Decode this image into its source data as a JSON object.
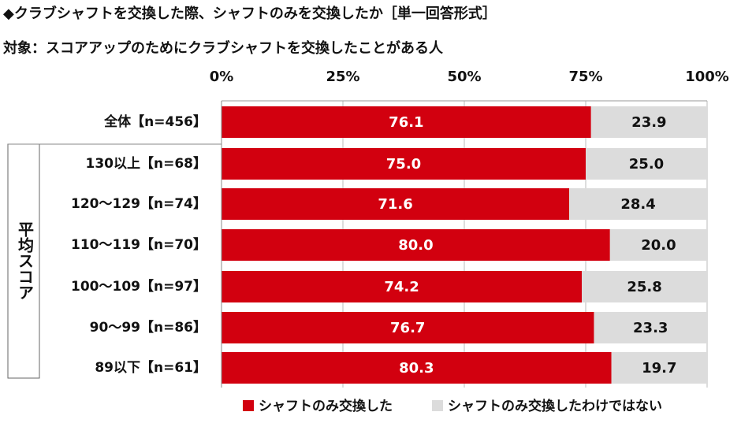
{
  "chart_data": {
    "type": "stacked-bar-horizontal",
    "title": "◆クラブシャフトを交換した際、シャフトのみを交換したか［単一回答形式］",
    "subtitle": "対象：スコアアップのためにクラブシャフトを交換したことがある人",
    "group_label": "平均スコア",
    "categories": [
      "全体【n=456】",
      "130以上【n=68】",
      "120～129【n=74】",
      "110～119【n=70】",
      "100～109【n=97】",
      "90～99【n=86】",
      "89以下【n=61】"
    ],
    "series": [
      {
        "name": "シャフトのみ交換した",
        "color": "#d2000f",
        "values": [
          76.1,
          75.0,
          71.6,
          80.0,
          74.2,
          76.7,
          80.3
        ],
        "value_labels": [
          "76.1",
          "75.0",
          "71.6",
          "80.0",
          "74.2",
          "76.7",
          "80.3"
        ]
      },
      {
        "name": "シャフトのみ交換したわけではない",
        "color": "#dcdcdc",
        "values": [
          23.9,
          25.0,
          28.4,
          20.0,
          25.8,
          23.3,
          19.7
        ],
        "value_labels": [
          "23.9",
          "25.0",
          "28.4",
          "20.0",
          "25.8",
          "23.3",
          "19.7"
        ]
      }
    ],
    "xlim": [
      0,
      100
    ],
    "xticks": [
      {
        "value": 0,
        "label": "0%"
      },
      {
        "value": 25,
        "label": "25%"
      },
      {
        "value": 50,
        "label": "50%"
      },
      {
        "value": 75,
        "label": "75%"
      },
      {
        "value": 100,
        "label": "100%"
      }
    ],
    "grid": true
  }
}
